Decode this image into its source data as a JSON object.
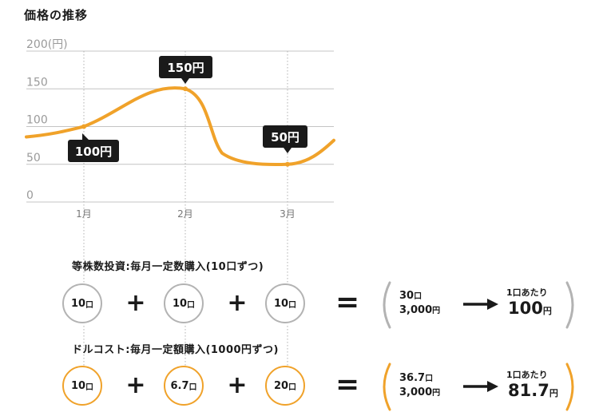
{
  "chart_data": {
    "type": "line",
    "title": "価格の推移",
    "y_axis_label": "200(円)",
    "y_ticks": [
      "0",
      "50",
      "100",
      "150"
    ],
    "ylim": [
      0,
      200
    ],
    "x_ticks": [
      "1月",
      "2月",
      "3月"
    ],
    "grid": true,
    "series": [
      {
        "values": [
          100,
          150,
          50
        ],
        "color": "#f0a22a"
      }
    ],
    "annotations": [
      "100円",
      "150円",
      "50円"
    ]
  },
  "equal_shares": {
    "label": "等株数投資:毎月一定数購入(10口ずつ)",
    "items": [
      {
        "num": "10",
        "unit": "口"
      },
      {
        "num": "10",
        "unit": "口"
      },
      {
        "num": "10",
        "unit": "口"
      }
    ],
    "total_units": {
      "num": "30",
      "unit": "口"
    },
    "total_cost": {
      "num": "3,000",
      "unit": "円"
    },
    "per_unit_label": "1口あたり",
    "per_unit_value": {
      "num": "100",
      "unit": "円"
    },
    "color": "#b3b3b3"
  },
  "dollar_cost": {
    "label": "ドルコスト:毎月一定額購入(1000円ずつ)",
    "items": [
      {
        "num": "10",
        "unit": "口"
      },
      {
        "num": "6.7",
        "unit": "口"
      },
      {
        "num": "20",
        "unit": "口"
      }
    ],
    "total_units": {
      "num": "36.7",
      "unit": "口"
    },
    "total_cost": {
      "num": "3,000",
      "unit": "円"
    },
    "per_unit_label": "1口あたり",
    "per_unit_value": {
      "num": "81.7",
      "unit": "円"
    },
    "color": "#f0a22a"
  },
  "symbols": {
    "plus": "+",
    "equals": "="
  },
  "colors": {
    "accent": "#f0a22a",
    "gray": "#b3b3b3",
    "dark": "#1a1a1a"
  }
}
